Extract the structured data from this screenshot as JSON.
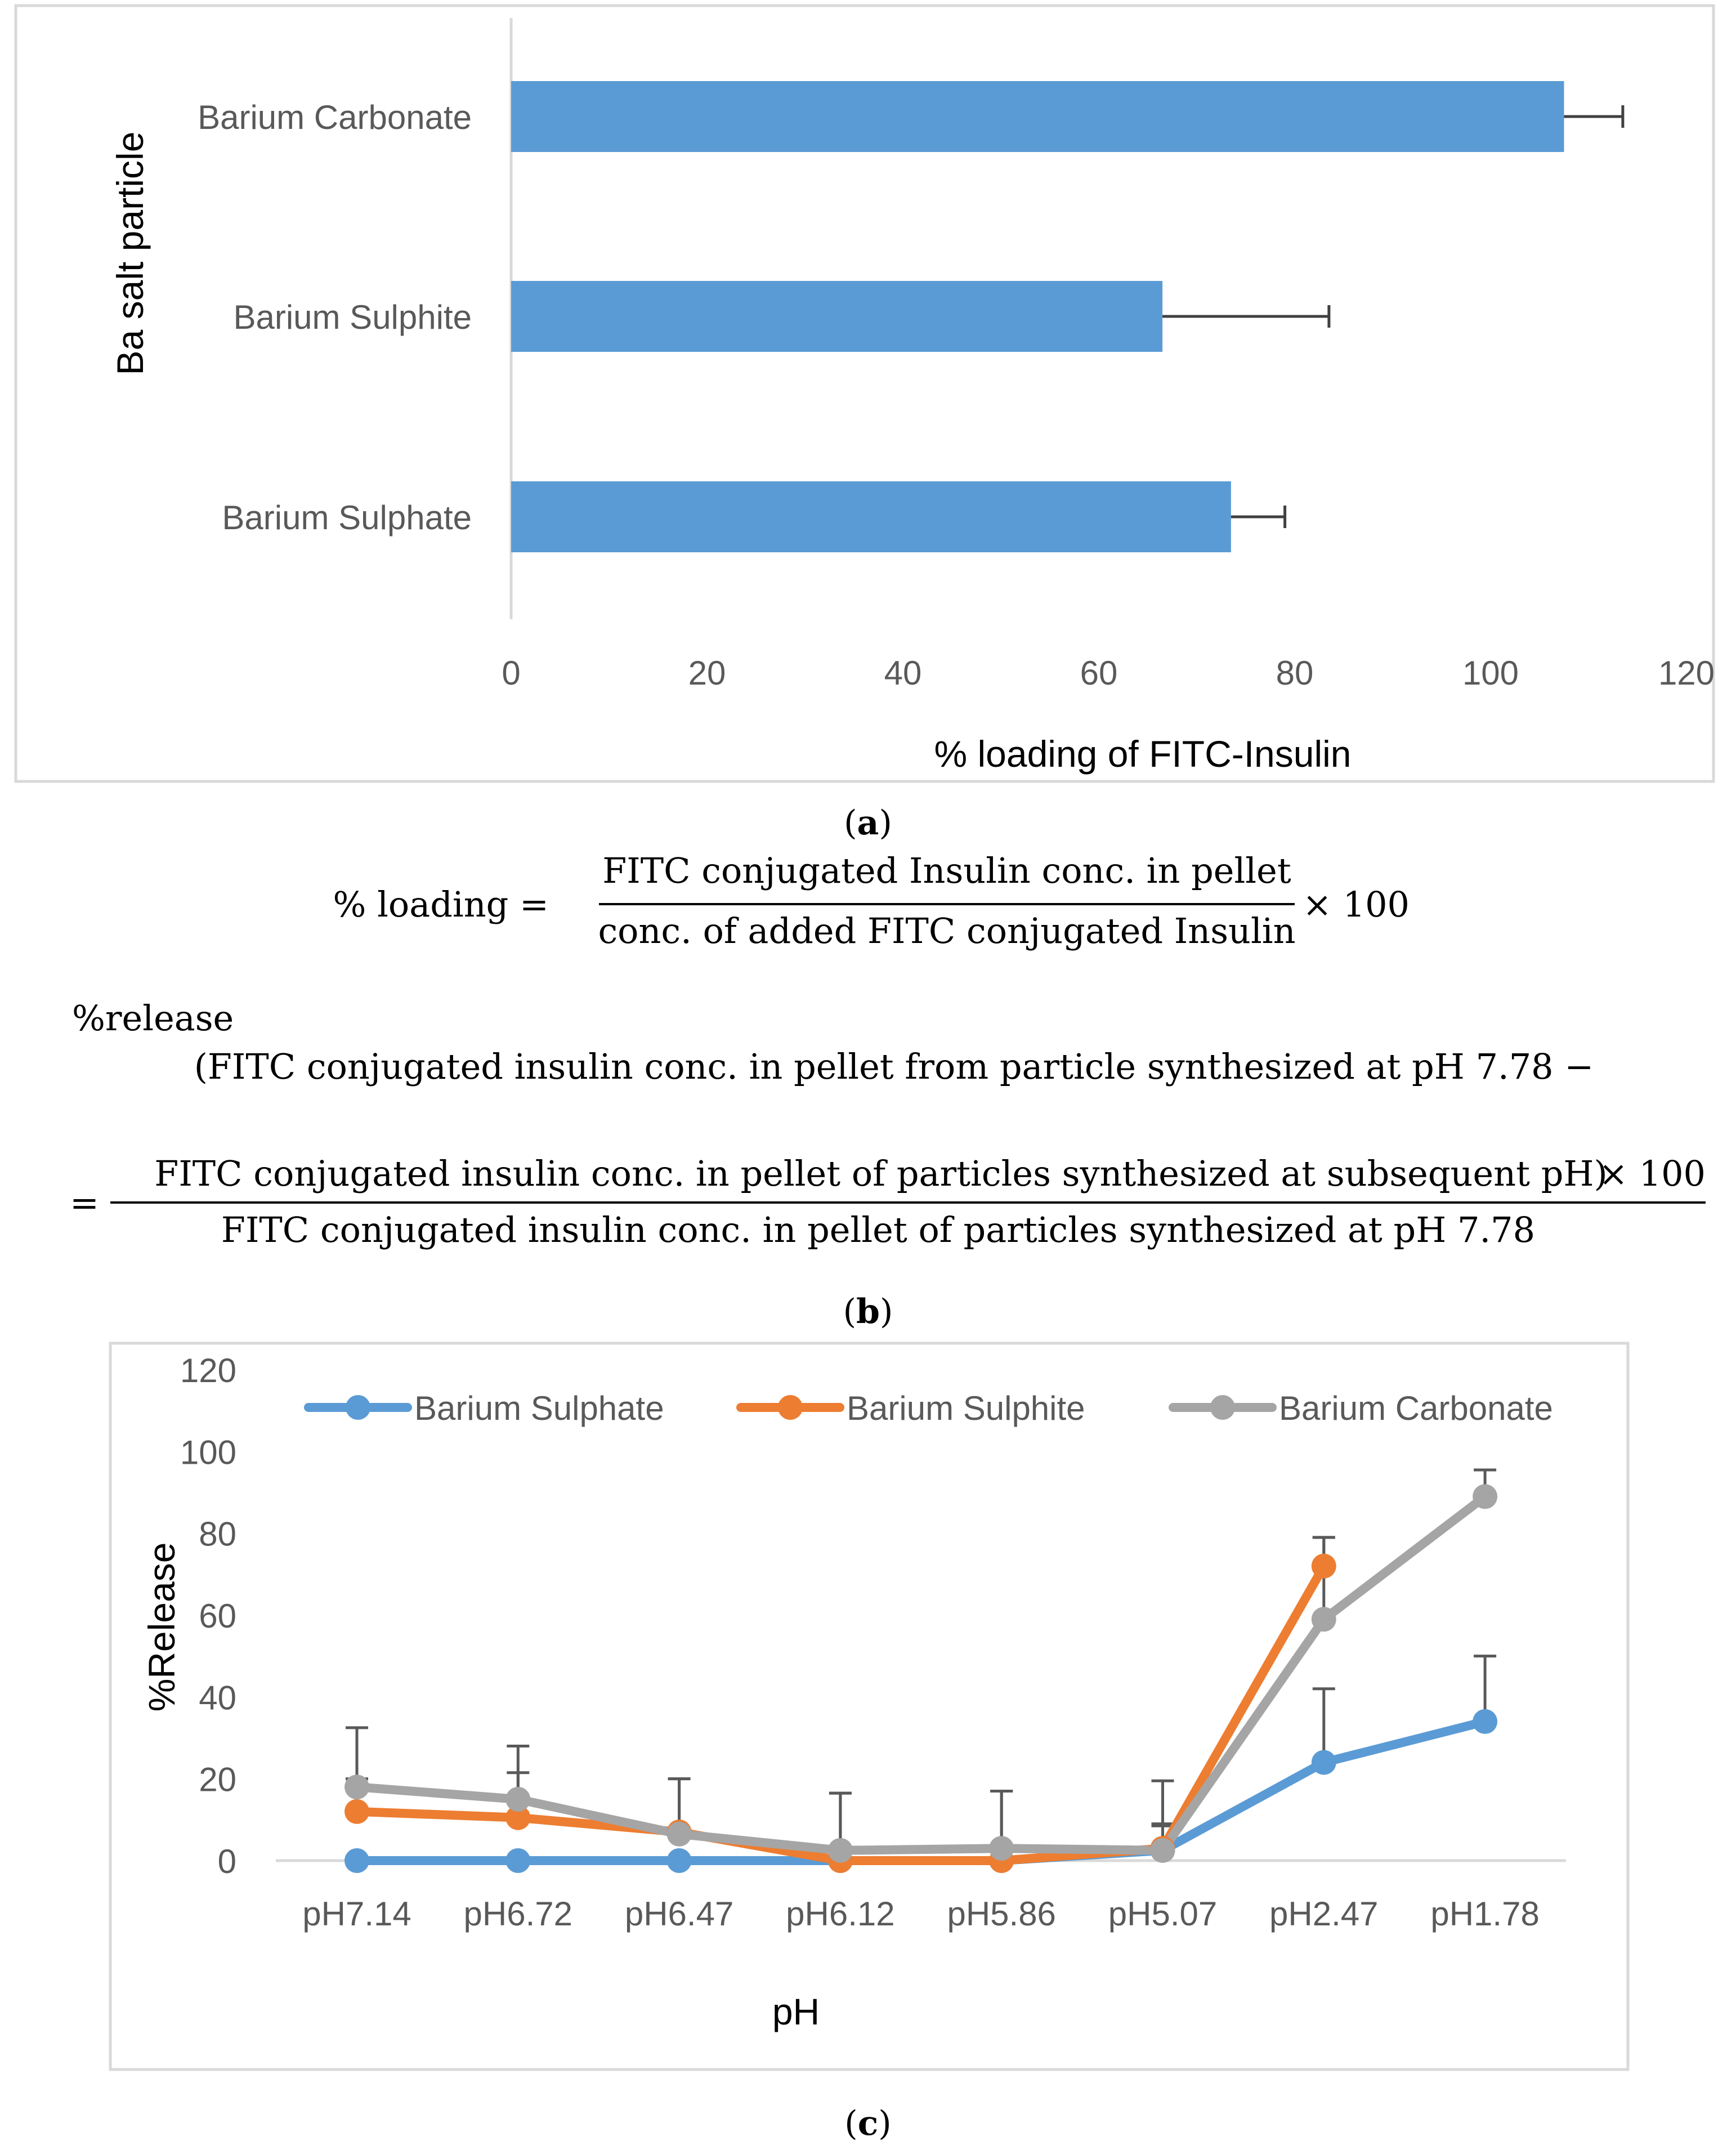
{
  "chart_data": [
    {
      "type": "bar",
      "orientation": "horizontal",
      "categories": [
        "Barium Carbonate",
        "Barium Sulphite",
        "Barium Sulphate"
      ],
      "values": [
        107.5,
        66.5,
        73.5
      ],
      "errors": [
        6,
        17,
        5.5
      ],
      "xlabel": "% loading of FITC-Insulin",
      "ylabel": "Ba salt particle",
      "xlim": [
        0,
        120
      ],
      "xticks": [
        "0",
        "20",
        "40",
        "60",
        "80",
        "100",
        "120"
      ],
      "color": "#5B9BD5",
      "grid": false,
      "panel_label": "a"
    },
    {
      "type": "line",
      "categories": [
        "pH7.14",
        "pH6.72",
        "pH6.47",
        "pH6.12",
        "pH5.86",
        "pH5.07",
        "pH2.47",
        "pH1.78"
      ],
      "series": [
        {
          "name": "Barium Sulphate",
          "color": "#5B9BD5",
          "values": [
            0,
            0,
            0,
            0,
            0,
            2.5,
            24,
            34
          ],
          "errors": [
            0,
            0,
            0,
            0,
            0,
            6,
            18,
            16
          ]
        },
        {
          "name": "Barium Sulphite",
          "color": "#ED7D31",
          "values": [
            12,
            10.5,
            7,
            0,
            0,
            3,
            72,
            null
          ],
          "errors": [
            8,
            11,
            13,
            16.5,
            17,
            6,
            7,
            null
          ]
        },
        {
          "name": "Barium Carbonate",
          "color": "#A5A5A5",
          "values": [
            18,
            15,
            6.5,
            2.5,
            3,
            2.5,
            59,
            89
          ],
          "errors": [
            14.5,
            13,
            13.5,
            14,
            14,
            17,
            20,
            6.5
          ]
        }
      ],
      "xlabel": "pH",
      "ylabel": "%Release",
      "ylim": [
        0,
        120
      ],
      "yticks": [
        "0",
        "20",
        "40",
        "60",
        "80",
        "100",
        "120"
      ],
      "legend": "top",
      "grid": false,
      "panel_label": "c"
    }
  ],
  "labels": {
    "panel_a": "a",
    "panel_b": "b",
    "panel_c": "c",
    "paren_open": "(",
    "paren_close": ")"
  },
  "equation_loading": {
    "lhs": "% loading =",
    "numerator": "FITC conjugated Insulin conc. in pellet",
    "denominator": "conc. of added FITC conjugated Insulin",
    "factor": "× 100"
  },
  "equation_release": {
    "lhs": "%release",
    "line1": "(FITC conjugated insulin conc. in pellet from particle synthesized at pH 7.78 −",
    "equals": "=",
    "numerator": "FITC conjugated insulin conc. in pellet of particles synthesized at subsequent pH)",
    "factor": "× 100",
    "denominator": "FITC conjugated insulin conc. in pellet of particles synthesized at pH 7.78"
  }
}
